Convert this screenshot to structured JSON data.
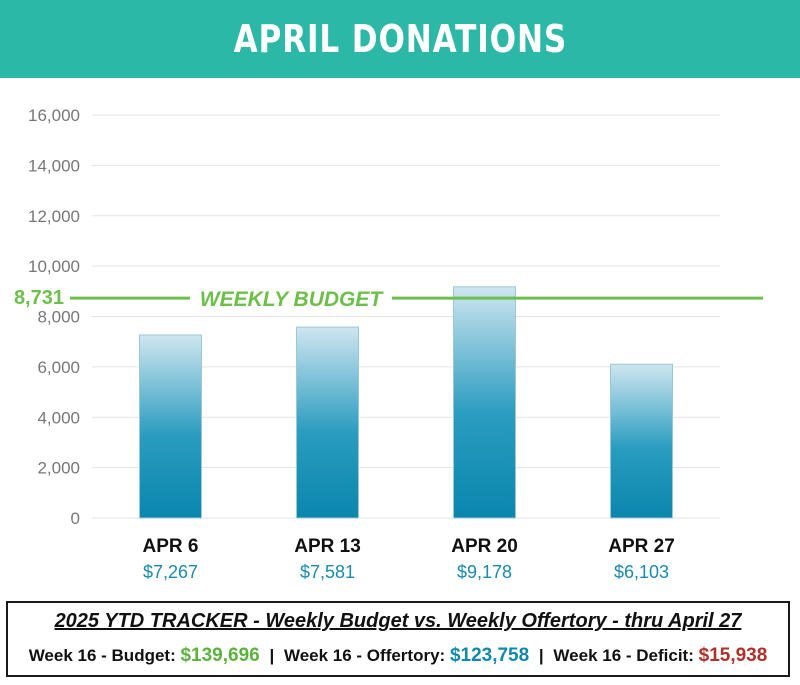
{
  "header": {
    "title": "APRIL DONATIONS"
  },
  "chart_data": {
    "type": "bar",
    "title": "APRIL DONATIONS",
    "categories": [
      "APR 6",
      "APR 13",
      "APR 20",
      "APR 27"
    ],
    "values": [
      7267,
      7581,
      9178,
      6103
    ],
    "value_labels": [
      "$7,267",
      "$7,581",
      "$9,178",
      "$6,103"
    ],
    "ylim": [
      0,
      16000
    ],
    "yticks": [
      "0",
      "2,000",
      "4,000",
      "6,000",
      "8,000",
      "10,000",
      "12,000",
      "14,000",
      "16,000"
    ],
    "grid": true,
    "reference_line": {
      "value": 8731,
      "value_label": "8,731",
      "label": "WEEKLY BUDGET",
      "color": "#6cc04a"
    },
    "bar_color_top": "#cfe6f0",
    "bar_color_bottom": "#0a86ad",
    "value_label_color": "#1a8ab0"
  },
  "tracker": {
    "title": "2025 YTD TRACKER  -  Weekly Budget  vs. Weekly Offertory  - thru April 27",
    "budget_label": "Week 16 - Budget:",
    "budget_value": "$139,696",
    "offertory_label": "Week 16 - Offertory:",
    "offertory_value": "$123,758",
    "deficit_label": "Week 16 - Deficit:",
    "deficit_value": "$15,938",
    "separator": "|"
  },
  "colors": {
    "header_bg": "#2bb8a6",
    "budget": "#5bb33e",
    "offertory": "#1188b0",
    "deficit": "#b0302a"
  }
}
